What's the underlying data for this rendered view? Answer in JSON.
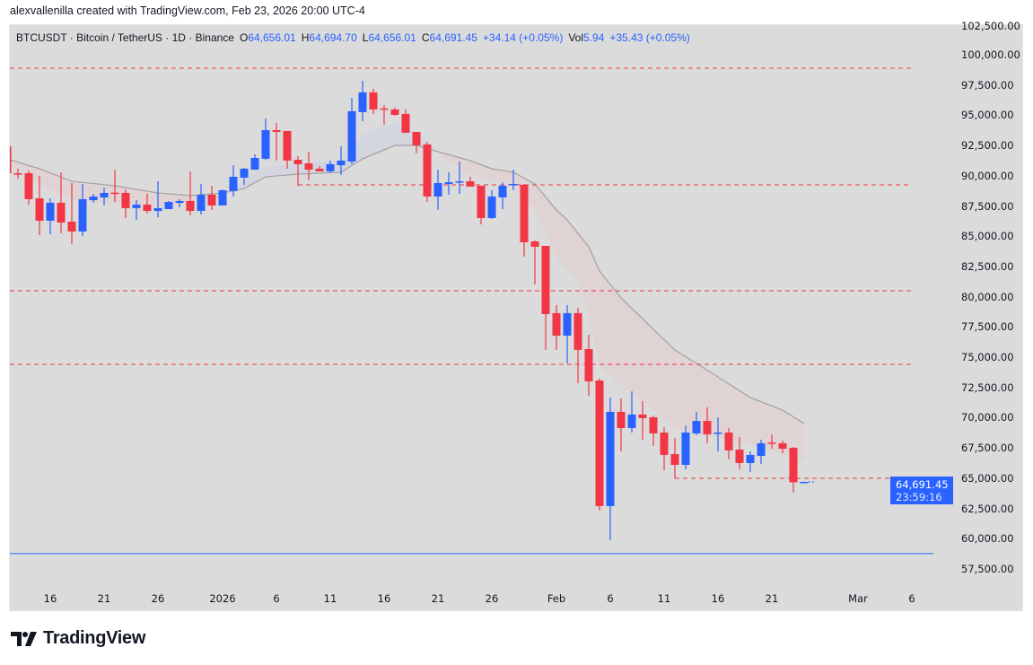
{
  "attribution": "alexvallenilla created with TradingView.com, Feb 23, 2026 20:00 UTC-4",
  "legend": {
    "symbol": "BTCUSDT · Bitcoin / TetherUS · 1D · Binance",
    "o_label": "O",
    "o_value": "64,656.01",
    "h_label": "H",
    "h_value": "64,694.70",
    "l_label": "L",
    "l_value": "64,656.01",
    "c_label": "C",
    "c_value": "64,691.45",
    "change": "+34.14 (+0.05%)",
    "vol_label": "Vol",
    "vol_value": "5.94",
    "vol_change": "+35.43 (+0.05%)"
  },
  "price_tag": {
    "price": "64,691.45",
    "countdown": "23:59:16",
    "color": "#2962ff"
  },
  "logo_text": "TradingView",
  "colors": {
    "up": "#2962ff",
    "down": "#f23645",
    "background": "#dbdbdb",
    "ma_line": "#a8a3a3",
    "cloud_bear": "#e0d3d3",
    "cloud_bull": "#d3d6de",
    "level": "#f23645",
    "support": "#2962ff"
  },
  "chart_data": {
    "type": "candlestick",
    "title": "",
    "x_range": [
      "2025-12-12",
      "2026-03-08"
    ],
    "ylim": [
      56306,
      102448
    ],
    "grid": false,
    "y_ticks": [
      "102,500.00",
      "100,000.00",
      "97,500.00",
      "95,000.00",
      "92,500.00",
      "90,000.00",
      "87,500.00",
      "85,000.00",
      "82,500.00",
      "80,000.00",
      "77,500.00",
      "75,000.00",
      "72,500.00",
      "70,000.00",
      "67,500.00",
      "65,000.00",
      "62,500.00",
      "60,000.00",
      "57,500.00"
    ],
    "x_ticks": [
      {
        "date": "2025-12-16",
        "label": "16"
      },
      {
        "date": "2025-12-21",
        "label": "21"
      },
      {
        "date": "2025-12-26",
        "label": "26"
      },
      {
        "date": "2026-01-01",
        "label": "2026"
      },
      {
        "date": "2026-01-06",
        "label": "6"
      },
      {
        "date": "2026-01-11",
        "label": "11"
      },
      {
        "date": "2026-01-16",
        "label": "16"
      },
      {
        "date": "2026-01-21",
        "label": "21"
      },
      {
        "date": "2026-01-26",
        "label": "26"
      },
      {
        "date": "2026-02-01",
        "label": "Feb"
      },
      {
        "date": "2026-02-06",
        "label": "6"
      },
      {
        "date": "2026-02-11",
        "label": "11"
      },
      {
        "date": "2026-02-16",
        "label": "16"
      },
      {
        "date": "2026-02-21",
        "label": "21"
      },
      {
        "date": "2026-03-01",
        "label": "Mar"
      },
      {
        "date": "2026-03-06",
        "label": "6"
      }
    ],
    "columns": [
      "date",
      "open",
      "high",
      "low",
      "close"
    ],
    "candles": [
      [
        "2025-12-12",
        92430,
        92500,
        90100,
        90210
      ],
      [
        "2025-12-13",
        90200,
        90580,
        89760,
        90150
      ],
      [
        "2025-12-14",
        90210,
        90430,
        87610,
        88060
      ],
      [
        "2025-12-15",
        88130,
        89990,
        85090,
        86280
      ],
      [
        "2025-12-16",
        86280,
        88130,
        85160,
        87760
      ],
      [
        "2025-12-17",
        87760,
        90280,
        85240,
        86130
      ],
      [
        "2025-12-18",
        86200,
        89390,
        84350,
        85390
      ],
      [
        "2025-12-19",
        85390,
        89320,
        85010,
        88060
      ],
      [
        "2025-12-20",
        87980,
        88500,
        87760,
        88280
      ],
      [
        "2025-12-21",
        88200,
        89020,
        87540,
        88580
      ],
      [
        "2025-12-22",
        88600,
        90500,
        87830,
        88500
      ],
      [
        "2025-12-23",
        88580,
        88870,
        86500,
        87320
      ],
      [
        "2025-12-24",
        87320,
        87980,
        86350,
        87610
      ],
      [
        "2025-12-25",
        87610,
        88500,
        86870,
        87090
      ],
      [
        "2025-12-26",
        87090,
        89540,
        86570,
        87320
      ],
      [
        "2025-12-27",
        87240,
        87910,
        87240,
        87830
      ],
      [
        "2025-12-28",
        87760,
        88060,
        87390,
        87910
      ],
      [
        "2025-12-29",
        87910,
        90360,
        86720,
        87090
      ],
      [
        "2025-12-30",
        87090,
        89320,
        86790,
        88430
      ],
      [
        "2025-12-31",
        88430,
        89170,
        87170,
        87540
      ],
      [
        "2026-01-01",
        87540,
        88870,
        87540,
        88800
      ],
      [
        "2026-01-02",
        88730,
        90870,
        88280,
        89910
      ],
      [
        "2026-01-03",
        89840,
        90650,
        89240,
        90580
      ],
      [
        "2026-01-04",
        90500,
        91770,
        90500,
        91470
      ],
      [
        "2026-01-05",
        91400,
        94730,
        91300,
        93770
      ],
      [
        "2026-01-06",
        93770,
        94360,
        91250,
        93620
      ],
      [
        "2026-01-07",
        93700,
        93700,
        90580,
        91250
      ],
      [
        "2026-01-08",
        91320,
        91620,
        89170,
        90950
      ],
      [
        "2026-01-09",
        91020,
        91990,
        89610,
        90500
      ],
      [
        "2026-01-10",
        90580,
        90800,
        90360,
        90360
      ],
      [
        "2026-01-11",
        90360,
        91250,
        90210,
        90950
      ],
      [
        "2026-01-12",
        90870,
        92430,
        90060,
        91250
      ],
      [
        "2026-01-13",
        91170,
        96440,
        90950,
        95330
      ],
      [
        "2026-01-14",
        95260,
        97850,
        94510,
        96890
      ],
      [
        "2026-01-15",
        96890,
        97180,
        95110,
        95480
      ],
      [
        "2026-01-16",
        95560,
        95850,
        94210,
        95480
      ],
      [
        "2026-01-17",
        95480,
        95630,
        94960,
        95030
      ],
      [
        "2026-01-18",
        95110,
        95480,
        93550,
        93550
      ],
      [
        "2026-01-19",
        93620,
        93620,
        91840,
        92510
      ],
      [
        "2026-01-20",
        92580,
        92800,
        87830,
        88280
      ],
      [
        "2026-01-21",
        88280,
        90500,
        87170,
        89390
      ],
      [
        "2026-01-22",
        89320,
        90280,
        88430,
        89460
      ],
      [
        "2026-01-23",
        89500,
        91170,
        88500,
        89540
      ],
      [
        "2026-01-24",
        89540,
        89910,
        89100,
        89100
      ],
      [
        "2026-01-25",
        89170,
        89170,
        85980,
        86500
      ],
      [
        "2026-01-26",
        86500,
        88800,
        86430,
        88280
      ],
      [
        "2026-01-27",
        88210,
        89460,
        87240,
        89170
      ],
      [
        "2026-01-28",
        89240,
        90500,
        88800,
        89320
      ],
      [
        "2026-01-29",
        89240,
        89320,
        83310,
        84500
      ],
      [
        "2026-01-30",
        84570,
        84640,
        81010,
        84130
      ],
      [
        "2026-01-31",
        84200,
        84200,
        75600,
        78560
      ],
      [
        "2026-02-01",
        78640,
        79300,
        75600,
        76780
      ],
      [
        "2026-02-02",
        76780,
        79300,
        74480,
        78640
      ],
      [
        "2026-02-03",
        78640,
        79080,
        72850,
        75600
      ],
      [
        "2026-02-04",
        75670,
        76850,
        71810,
        73000
      ],
      [
        "2026-02-05",
        73070,
        73220,
        62320,
        62690
      ],
      [
        "2026-02-06",
        62690,
        71660,
        59870,
        70480
      ],
      [
        "2026-02-07",
        70480,
        71590,
        67210,
        69140
      ],
      [
        "2026-02-08",
        69140,
        72180,
        68770,
        70260
      ],
      [
        "2026-02-09",
        70260,
        71370,
        68180,
        69960
      ],
      [
        "2026-02-10",
        70030,
        70180,
        67660,
        68700
      ],
      [
        "2026-02-11",
        68770,
        69220,
        65650,
        66920
      ],
      [
        "2026-02-12",
        66990,
        68320,
        64990,
        66100
      ],
      [
        "2026-02-13",
        66100,
        69360,
        65730,
        68770
      ],
      [
        "2026-02-14",
        68700,
        70480,
        68550,
        69730
      ],
      [
        "2026-02-15",
        69730,
        70850,
        67880,
        68620
      ],
      [
        "2026-02-16",
        68700,
        70030,
        67210,
        68770
      ],
      [
        "2026-02-17",
        68770,
        69140,
        66550,
        67290
      ],
      [
        "2026-02-18",
        67360,
        68400,
        65730,
        66250
      ],
      [
        "2026-02-19",
        66250,
        67210,
        65510,
        66920
      ],
      [
        "2026-02-20",
        66840,
        68180,
        66180,
        67880
      ],
      [
        "2026-02-21",
        67950,
        68620,
        67430,
        67880
      ],
      [
        "2026-02-22",
        67880,
        68100,
        67060,
        67430
      ],
      [
        "2026-02-23",
        67500,
        67580,
        63800,
        64656
      ],
      [
        "2026-02-24",
        64656.01,
        64694.7,
        64656.01,
        64691.45
      ]
    ],
    "ma_slow": [
      [
        "2025-12-12",
        91395
      ],
      [
        "2025-12-15",
        90579
      ],
      [
        "2025-12-18",
        89541
      ],
      [
        "2025-12-22",
        89170
      ],
      [
        "2025-12-26",
        88577
      ],
      [
        "2025-12-29",
        88354
      ],
      [
        "2026-01-01",
        88577
      ],
      [
        "2026-01-03",
        88947
      ],
      [
        "2026-01-05",
        89912
      ],
      [
        "2026-01-08",
        90134
      ],
      [
        "2026-01-12",
        90283
      ],
      [
        "2026-01-14",
        91395
      ],
      [
        "2026-01-17",
        92508
      ],
      [
        "2026-01-19",
        92508
      ],
      [
        "2026-01-21",
        91989
      ],
      [
        "2026-01-24",
        91247
      ],
      [
        "2026-01-26",
        90579
      ],
      [
        "2026-01-28",
        90283
      ],
      [
        "2026-01-30",
        89318
      ],
      [
        "2026-02-01",
        87167
      ],
      [
        "2026-02-02",
        86351
      ],
      [
        "2026-02-04",
        84126
      ],
      [
        "2026-02-05",
        82123
      ],
      [
        "2026-02-07",
        79897
      ],
      [
        "2026-02-10",
        77301
      ],
      [
        "2026-02-12",
        75594
      ],
      [
        "2026-02-14",
        74481
      ],
      [
        "2026-02-16",
        73368
      ],
      [
        "2026-02-19",
        71662
      ],
      [
        "2026-02-22",
        70624
      ],
      [
        "2026-02-24",
        69511
      ]
    ],
    "ma_fast": [
      [
        "2025-12-12",
        91200
      ],
      [
        "2025-12-15",
        89300
      ],
      [
        "2025-12-18",
        88000
      ],
      [
        "2025-12-22",
        87700
      ],
      [
        "2025-12-26",
        87400
      ],
      [
        "2025-12-29",
        87700
      ],
      [
        "2026-01-01",
        88400
      ],
      [
        "2026-01-03",
        89600
      ],
      [
        "2026-01-05",
        90700
      ],
      [
        "2026-01-08",
        91000
      ],
      [
        "2026-01-12",
        91300
      ],
      [
        "2026-01-14",
        93400
      ],
      [
        "2026-01-17",
        94400
      ],
      [
        "2026-01-19",
        93700
      ],
      [
        "2026-01-21",
        91900
      ],
      [
        "2026-01-24",
        90000
      ],
      [
        "2026-01-28",
        89200
      ],
      [
        "2026-01-30",
        87240
      ],
      [
        "2026-02-01",
        83240
      ],
      [
        "2026-02-03",
        81300
      ],
      [
        "2026-02-04",
        78560
      ],
      [
        "2026-02-05",
        74330
      ],
      [
        "2026-02-07",
        72630
      ],
      [
        "2026-02-09",
        71370
      ],
      [
        "2026-02-12",
        69140
      ],
      [
        "2026-02-19",
        67800
      ],
      [
        "2026-02-24",
        66470
      ]
    ],
    "horizontal_levels": [
      {
        "price": 98890,
        "style": "dashed",
        "color": "#f23645",
        "from": "2025-12-12"
      },
      {
        "price": 89240,
        "style": "dashed",
        "color": "#f23645",
        "from": "2026-01-08"
      },
      {
        "price": 80490,
        "style": "dashed",
        "color": "#f23645",
        "from": "2025-12-12"
      },
      {
        "price": 74410,
        "style": "dashed",
        "color": "#f23645",
        "from": "2025-12-12"
      },
      {
        "price": 64990,
        "style": "dashed",
        "color": "#f23645",
        "from": "2026-02-12"
      },
      {
        "price": 58760,
        "style": "solid",
        "color": "#2962ff",
        "from": "2025-12-12"
      }
    ]
  }
}
